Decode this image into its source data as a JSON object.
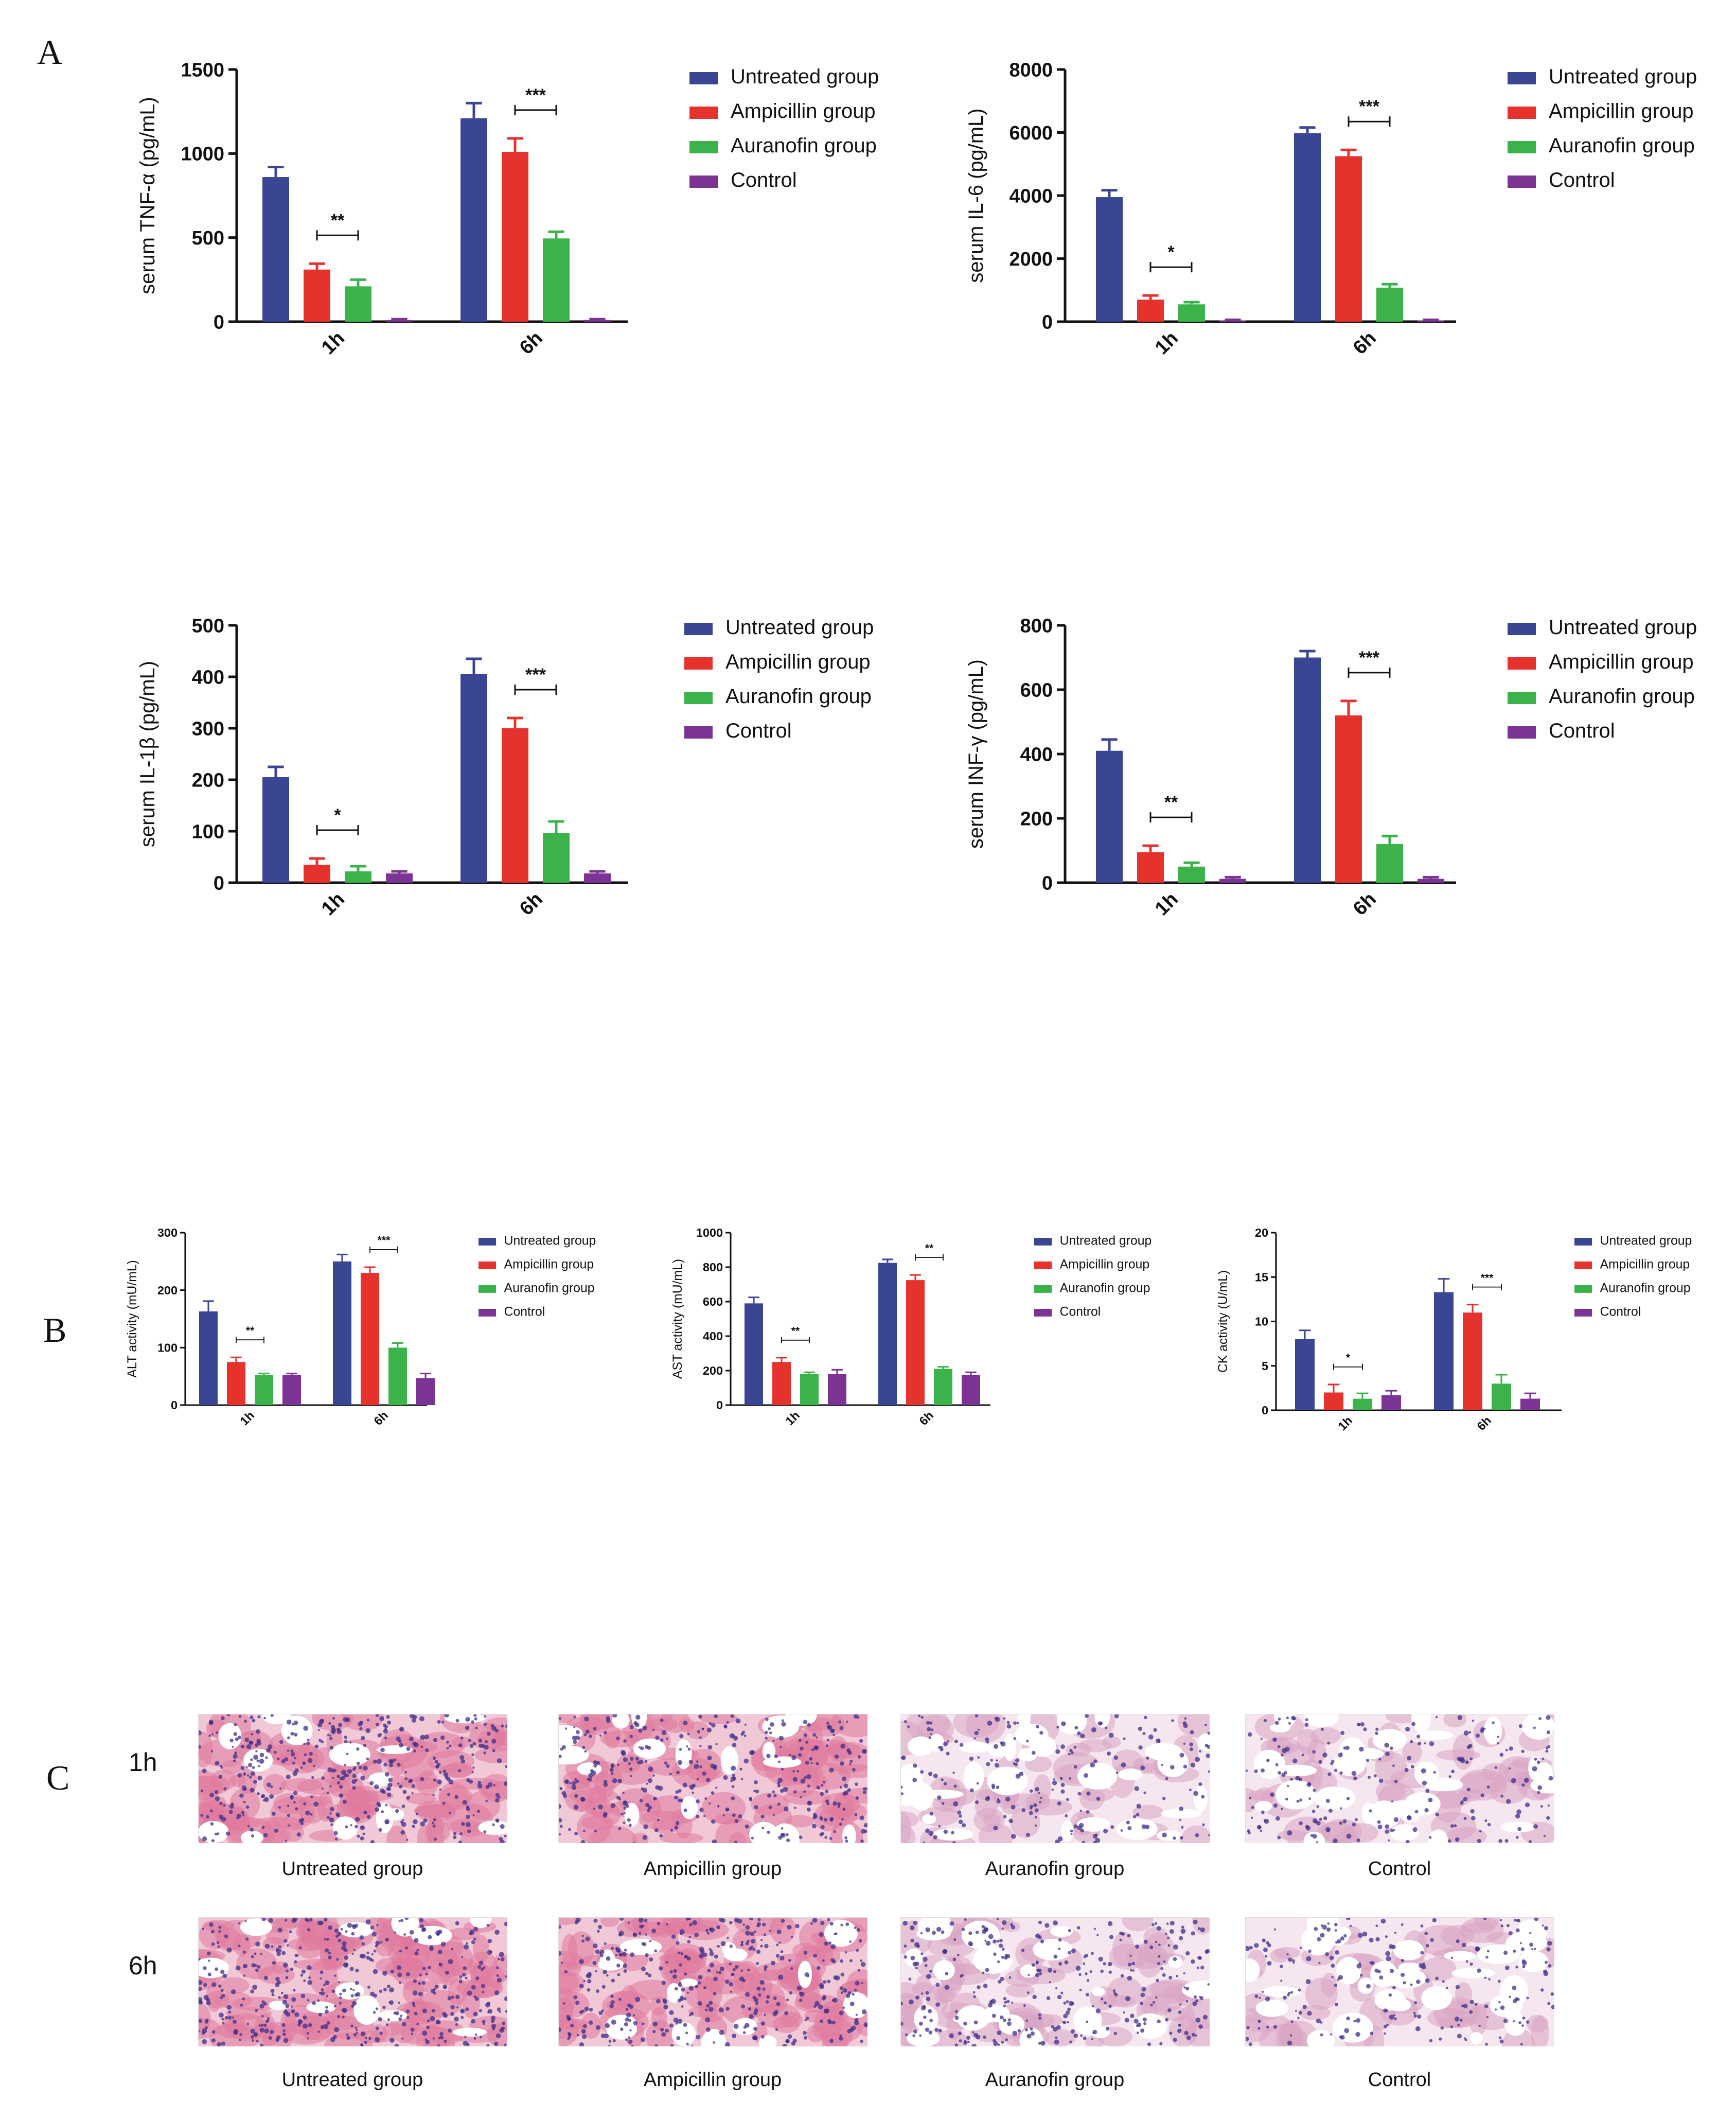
{
  "panels": {
    "a": "A",
    "b": "B",
    "c": "C"
  },
  "colors": {
    "untreated": "#3a4593",
    "ampicillin": "#e5322d",
    "auranofin": "#3cb34a",
    "control": "#7b3394"
  },
  "chart_data": [
    {
      "type": "bar",
      "ylabel": "serum TNF-α (pg/mL)",
      "ylim": [
        0,
        1500
      ],
      "yticks": [
        0,
        500,
        1000,
        1500
      ],
      "categories": [
        "1h",
        "6h"
      ],
      "series": [
        {
          "name": "Untreated group",
          "values": [
            860,
            1210
          ],
          "errors": [
            60,
            90
          ]
        },
        {
          "name": "Ampicillin group",
          "values": [
            310,
            1010
          ],
          "errors": [
            35,
            80
          ]
        },
        {
          "name": "Auranofin group",
          "values": [
            210,
            495
          ],
          "errors": [
            40,
            40
          ]
        },
        {
          "name": "Control",
          "values": [
            10,
            10
          ],
          "errors": [
            5,
            5
          ]
        }
      ],
      "significance": [
        "**",
        "***"
      ],
      "legend": "right"
    },
    {
      "type": "bar",
      "ylabel": "serum IL-6 (pg/mL)",
      "ylim": [
        0,
        8000
      ],
      "yticks": [
        0,
        2000,
        4000,
        6000,
        8000
      ],
      "categories": [
        "1h",
        "6h"
      ],
      "series": [
        {
          "name": "Untreated group",
          "values": [
            3950,
            5980
          ],
          "errors": [
            220,
            180
          ]
        },
        {
          "name": "Ampicillin group",
          "values": [
            700,
            5250
          ],
          "errors": [
            130,
            200
          ]
        },
        {
          "name": "Auranofin group",
          "values": [
            550,
            1080
          ],
          "errors": [
            70,
            110
          ]
        },
        {
          "name": "Control",
          "values": [
            40,
            40
          ],
          "errors": [
            20,
            20
          ]
        }
      ],
      "significance": [
        "*",
        "***"
      ],
      "legend": "right"
    },
    {
      "type": "bar",
      "ylabel": "serum IL-1β (pg/mL)",
      "ylim": [
        0,
        500
      ],
      "yticks": [
        0,
        100,
        200,
        300,
        400,
        500
      ],
      "categories": [
        "1h",
        "6h"
      ],
      "series": [
        {
          "name": "Untreated group",
          "values": [
            205,
            405
          ],
          "errors": [
            20,
            30
          ]
        },
        {
          "name": "Ampicillin group",
          "values": [
            35,
            300
          ],
          "errors": [
            12,
            20
          ]
        },
        {
          "name": "Auranofin group",
          "values": [
            22,
            97
          ],
          "errors": [
            10,
            22
          ]
        },
        {
          "name": "Control",
          "values": [
            18,
            18
          ],
          "errors": [
            4,
            4
          ]
        }
      ],
      "significance": [
        "*",
        "***"
      ],
      "legend": "right"
    },
    {
      "type": "bar",
      "ylabel": "serum INF-γ (pg/mL)",
      "ylim": [
        0,
        800
      ],
      "yticks": [
        0,
        200,
        400,
        600,
        800
      ],
      "categories": [
        "1h",
        "6h"
      ],
      "series": [
        {
          "name": "Untreated group",
          "values": [
            410,
            700
          ],
          "errors": [
            35,
            20
          ]
        },
        {
          "name": "Ampicillin group",
          "values": [
            95,
            520
          ],
          "errors": [
            20,
            45
          ]
        },
        {
          "name": "Auranofin group",
          "values": [
            50,
            120
          ],
          "errors": [
            12,
            25
          ]
        },
        {
          "name": "Control",
          "values": [
            12,
            12
          ],
          "errors": [
            5,
            5
          ]
        }
      ],
      "significance": [
        "**",
        "***"
      ],
      "legend": "right"
    },
    {
      "type": "bar",
      "ylabel": "ALT activity (mU/mL)",
      "ylim": [
        0,
        300
      ],
      "yticks": [
        0,
        100,
        200,
        300
      ],
      "categories": [
        "1h",
        "6h"
      ],
      "series": [
        {
          "name": "Untreated group",
          "values": [
            163,
            250
          ],
          "errors": [
            18,
            12
          ]
        },
        {
          "name": "Ampicillin group",
          "values": [
            75,
            230
          ],
          "errors": [
            8,
            10
          ]
        },
        {
          "name": "Auranofin group",
          "values": [
            52,
            100
          ],
          "errors": [
            3,
            8
          ]
        },
        {
          "name": "Control",
          "values": [
            52,
            47
          ],
          "errors": [
            3,
            8
          ]
        }
      ],
      "significance": [
        "**",
        "***"
      ],
      "legend": "right"
    },
    {
      "type": "bar",
      "ylabel": "AST activity (mU/mL)",
      "ylim": [
        0,
        1000
      ],
      "yticks": [
        0,
        200,
        400,
        600,
        800,
        1000
      ],
      "categories": [
        "1h",
        "6h"
      ],
      "series": [
        {
          "name": "Untreated group",
          "values": [
            590,
            825
          ],
          "errors": [
            35,
            20
          ]
        },
        {
          "name": "Ampicillin group",
          "values": [
            250,
            725
          ],
          "errors": [
            25,
            30
          ]
        },
        {
          "name": "Auranofin group",
          "values": [
            180,
            210
          ],
          "errors": [
            10,
            12
          ]
        },
        {
          "name": "Control",
          "values": [
            180,
            175
          ],
          "errors": [
            25,
            15
          ]
        }
      ],
      "significance": [
        "**",
        "**"
      ],
      "legend": "right"
    },
    {
      "type": "bar",
      "ylabel": "CK activity (U/mL)",
      "ylim": [
        0,
        20
      ],
      "yticks": [
        0,
        5,
        10,
        15,
        20
      ],
      "categories": [
        "1h",
        "6h"
      ],
      "series": [
        {
          "name": "Untreated group",
          "values": [
            8,
            13.3
          ],
          "errors": [
            1,
            1.5
          ]
        },
        {
          "name": "Ampicillin group",
          "values": [
            2,
            11
          ],
          "errors": [
            0.9,
            0.9
          ]
        },
        {
          "name": "Auranofin group",
          "values": [
            1.3,
            3
          ],
          "errors": [
            0.6,
            1
          ]
        },
        {
          "name": "Control",
          "values": [
            1.7,
            1.3
          ],
          "errors": [
            0.5,
            0.6
          ]
        }
      ],
      "significance": [
        "*",
        "***"
      ],
      "legend": "right"
    }
  ],
  "histology": {
    "rows": [
      {
        "label": "1h"
      },
      {
        "label": "6h"
      }
    ],
    "captions_1h": [
      "Untreated group",
      "Ampicillin group",
      "Auranofin group",
      "Control"
    ],
    "captions_6h": [
      "Untreated group",
      "Ampicillin group",
      "Auranofin group",
      "Control"
    ]
  }
}
